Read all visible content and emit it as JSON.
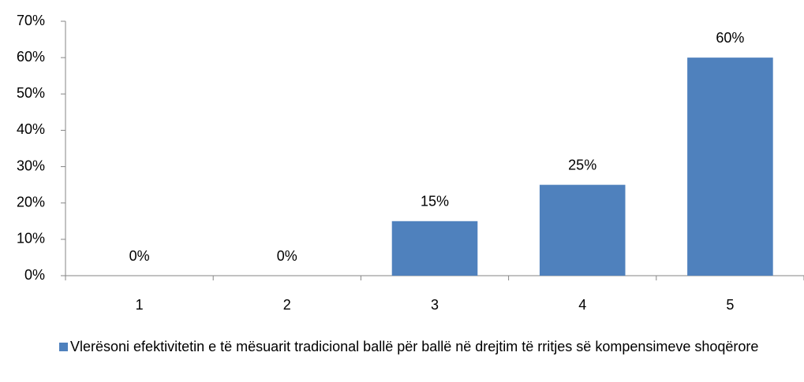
{
  "chart_data": {
    "type": "bar",
    "categories": [
      "1",
      "2",
      "3",
      "4",
      "5"
    ],
    "series": [
      {
        "name": "Vlerësoni efektivitetin e të mësuarit tradicional ballë për ballë në drejtim të rritjes së kompensimeve shoqërore",
        "color": "#4f81bd",
        "values": [
          0,
          0,
          15,
          25,
          60
        ],
        "value_labels": [
          "0%",
          "0%",
          "15%",
          "25%",
          "60%"
        ]
      }
    ],
    "ylim": [
      0,
      70
    ],
    "yticks": [
      {
        "value": 0,
        "label": "0%"
      },
      {
        "value": 10,
        "label": "10%"
      },
      {
        "value": 20,
        "label": "20%"
      },
      {
        "value": 30,
        "label": "30%"
      },
      {
        "value": 40,
        "label": "40%"
      },
      {
        "value": 50,
        "label": "50%"
      },
      {
        "value": 60,
        "label": "60%"
      },
      {
        "value": 70,
        "label": "70%"
      }
    ],
    "grid": false,
    "legend": "bottom"
  }
}
